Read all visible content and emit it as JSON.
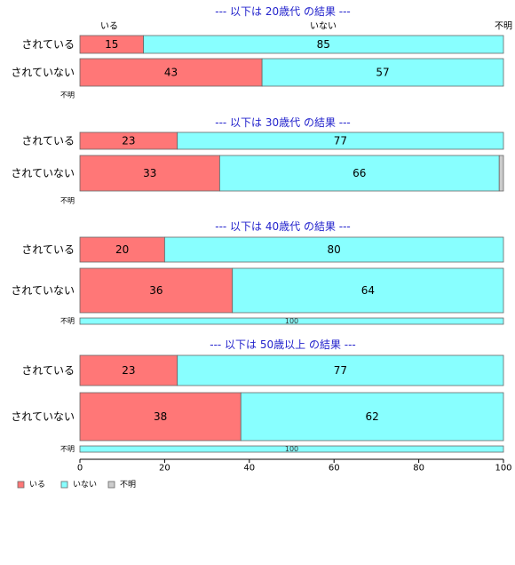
{
  "chart_data": {
    "type": "bar",
    "orientation": "horizontal",
    "stacked": true,
    "percent": true,
    "colors": {
      "いる": "#ff7777",
      "いない": "#88ffff",
      "不明": "#cccccc"
    },
    "legend": {
      "placement": "bottom-left",
      "entries": [
        "いる",
        "いない",
        "不明"
      ]
    },
    "top_labels": [
      "いる",
      "いない",
      "不明"
    ],
    "xlim": [
      0,
      100
    ],
    "xticks": [
      "0",
      "20",
      "40",
      "60",
      "80",
      "100"
    ],
    "panels": [
      {
        "title": "--- 以下は 20歳代 の結果 ---",
        "rows": [
          {
            "label": "されている",
            "values": [
              15,
              85,
              0
            ]
          },
          {
            "label": "されていない",
            "values": [
              43,
              57,
              0
            ]
          },
          {
            "label": "不明",
            "values": [
              0,
              0,
              0
            ]
          }
        ]
      },
      {
        "title": "--- 以下は 30歳代 の結果 ---",
        "rows": [
          {
            "label": "されている",
            "values": [
              23,
              77,
              0
            ]
          },
          {
            "label": "されていない",
            "values": [
              33,
              66,
              1
            ]
          },
          {
            "label": "不明",
            "values": [
              0,
              0,
              0
            ]
          }
        ]
      },
      {
        "title": "--- 以下は 40歳代 の結果 ---",
        "rows": [
          {
            "label": "されている",
            "values": [
              20,
              80,
              0
            ]
          },
          {
            "label": "されていない",
            "values": [
              36,
              64,
              0
            ]
          },
          {
            "label": "不明",
            "values": [
              0,
              100,
              0
            ]
          }
        ]
      },
      {
        "title": "--- 以下は 50歳以上 の結果 ---",
        "rows": [
          {
            "label": "されている",
            "values": [
              23,
              77,
              0
            ]
          },
          {
            "label": "されていない",
            "values": [
              38,
              62,
              0
            ]
          },
          {
            "label": "不明",
            "values": [
              0,
              100,
              0
            ]
          }
        ]
      }
    ]
  }
}
